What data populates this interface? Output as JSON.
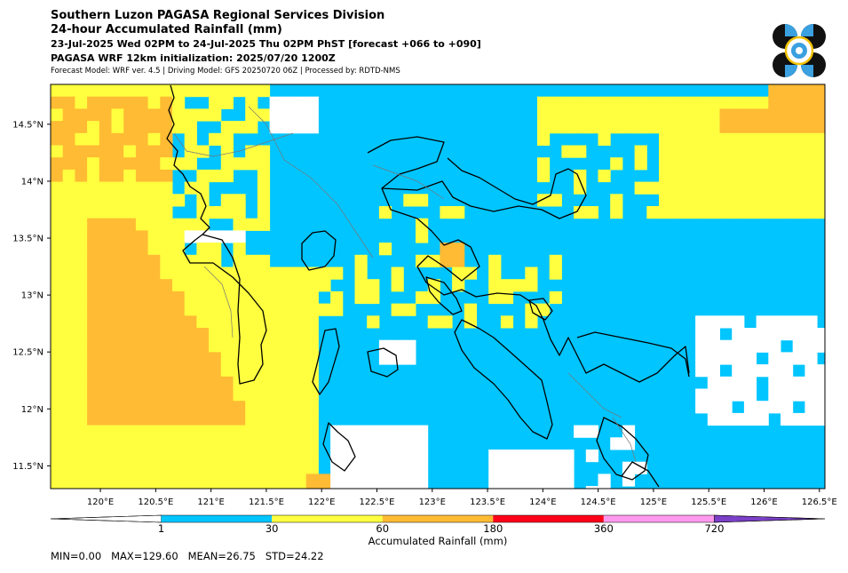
{
  "header": {
    "title1": "Southern Luzon PAGASA Regional Services Division",
    "title2": "24-hour Accumulated Rainfall (mm)",
    "period": "23-Jul-2025 Wed 02PM to 24-Jul-2025 Thu 02PM PhST [forecast +066 to +090]",
    "init": "PAGASA WRF 12km initialization: 2025/07/20 1200Z",
    "model_info": "Forecast Model: WRF ver. 4.5 | Driving Model: GFS 20250720 06Z | Processed by: RDTD-NMS"
  },
  "logo": {
    "name": "pagasa-logo",
    "colors": {
      "dark": "#111111",
      "blue": "#3aa0e0",
      "gold": "#f2c200"
    }
  },
  "map": {
    "lon_range": [
      119.55,
      126.55
    ],
    "lat_range": [
      11.3,
      14.85
    ],
    "x_ticks": [
      {
        "value": 120.0,
        "label": "120°E"
      },
      {
        "value": 120.5,
        "label": "120.5°E"
      },
      {
        "value": 121.0,
        "label": "121°E"
      },
      {
        "value": 121.5,
        "label": "121.5°E"
      },
      {
        "value": 122.0,
        "label": "122°E"
      },
      {
        "value": 122.5,
        "label": "122.5°E"
      },
      {
        "value": 123.0,
        "label": "123°E"
      },
      {
        "value": 123.5,
        "label": "123.5°E"
      },
      {
        "value": 124.0,
        "label": "124°E"
      },
      {
        "value": 124.5,
        "label": "124.5°E"
      },
      {
        "value": 125.0,
        "label": "125°E"
      },
      {
        "value": 125.5,
        "label": "125.5°E"
      },
      {
        "value": 126.0,
        "label": "126°E"
      },
      {
        "value": 126.5,
        "label": "126.5°E"
      }
    ],
    "y_ticks": [
      {
        "value": 14.5,
        "label": "14.5°N"
      },
      {
        "value": 14.0,
        "label": "14°N"
      },
      {
        "value": 13.5,
        "label": "13.5°N"
      },
      {
        "value": 13.0,
        "label": "13°N"
      },
      {
        "value": 12.5,
        "label": "12.5°N"
      },
      {
        "value": 12.0,
        "label": "12°N"
      },
      {
        "value": 11.5,
        "label": "11.5°N"
      }
    ],
    "colors": {
      "below1": "#ffffff",
      "c1": "#00c5ff",
      "c30": "#ffff40",
      "c60": "#ffbb33",
      "coast": "#000000",
      "border": "#777777"
    }
  },
  "colorbar": {
    "levels": [
      1,
      30,
      60,
      180,
      360,
      720
    ],
    "tick_labels": [
      "1",
      "30",
      "60",
      "180",
      "360",
      "720"
    ],
    "colors": [
      "#00c5ff",
      "#ffff40",
      "#ffbb33",
      "#ff0019",
      "#ff99ee",
      "#7b3fc8"
    ],
    "label": "Accumulated Rainfall (mm)"
  },
  "stats": {
    "text": "MIN=0.00   MAX=129.60   MEAN=26.75   STD=24.22"
  }
}
